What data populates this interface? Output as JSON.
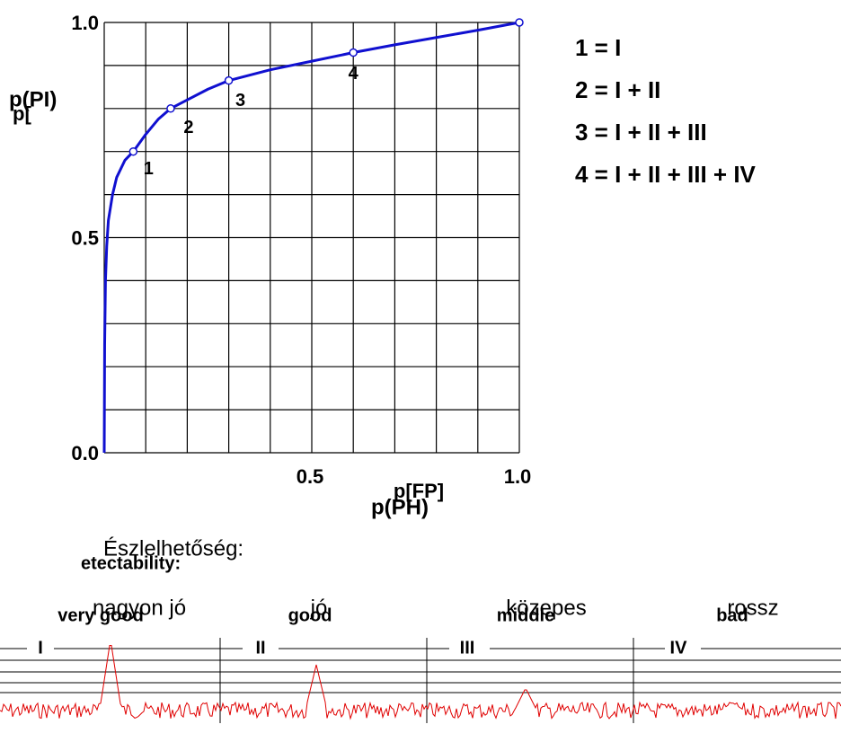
{
  "chart_data": {
    "type": "line",
    "x": [
      0,
      0.001,
      0.003,
      0.006,
      0.01,
      0.02,
      0.03,
      0.05,
      0.07,
      0.1,
      0.13,
      0.16,
      0.2,
      0.25,
      0.3,
      0.4,
      0.5,
      0.6,
      0.7,
      0.8,
      0.9,
      1
    ],
    "series": [
      {
        "color": "#1010d0",
        "values": [
          0,
          0.25,
          0.4,
          0.48,
          0.54,
          0.6,
          0.64,
          0.68,
          0.7,
          0.74,
          0.775,
          0.8,
          0.82,
          0.845,
          0.865,
          0.89,
          0.91,
          0.93,
          0.948,
          0.965,
          0.982,
          1
        ]
      }
    ],
    "points": {
      "x": [
        0.07,
        0.16,
        0.3,
        0.6,
        1
      ],
      "values": [
        0.7,
        0.8,
        0.865,
        0.93,
        1
      ],
      "labels": [
        "1",
        "2",
        "3",
        "4",
        null
      ]
    },
    "xlim": [
      0,
      1
    ],
    "ylim": [
      0,
      1
    ],
    "xticks": [
      {
        "value": 0.5,
        "label": "0.5"
      },
      {
        "value": 1,
        "label": "1.0"
      }
    ],
    "yticks": [
      {
        "value": 0,
        "label": "0.0"
      },
      {
        "value": 0.5,
        "label": "0.5"
      },
      {
        "value": 1,
        "label": "1.0"
      }
    ],
    "xgrid": [
      0,
      0.1,
      0.2,
      0.3,
      0.4,
      0.5,
      0.6,
      0.7,
      0.8,
      0.9,
      1
    ],
    "ygrid": [
      0,
      0.1,
      0.2,
      0.3,
      0.4,
      0.5,
      0.6,
      0.7,
      0.8,
      0.9,
      1
    ],
    "x_labels": [
      "p(PH)",
      "p[FP]"
    ],
    "y_labels": [
      "p(PI)",
      "p["
    ]
  },
  "legend": [
    "1 = I",
    "2 = I + II",
    "3 = I + II + III",
    "4 = I + II + III + IV"
  ],
  "detectability": {
    "title": "Észlelhetőség:",
    "title_en": "etectability:",
    "levels": [
      {
        "label": "nagyon jó",
        "label_en": "very good",
        "numeral": "I"
      },
      {
        "label": "jó",
        "label_en": "good",
        "numeral": "II"
      },
      {
        "label": "közepes",
        "label_en": "middle",
        "numeral": "III"
      },
      {
        "label": "rossz",
        "label_en": "bad",
        "numeral": "IV"
      }
    ]
  }
}
